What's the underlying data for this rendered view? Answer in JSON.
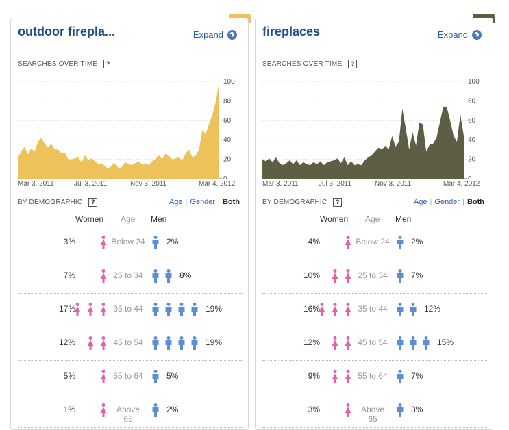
{
  "colors": {
    "outdoor": "#eec25a",
    "fireplaces": "#5e5e45",
    "women": "#e85ea9",
    "men": "#5b8ed6",
    "title": "#1f4e8c"
  },
  "panels": [
    {
      "title": "outdoor firepla...",
      "expand_label": "Expand",
      "searches_label": "SEARCHES OVER TIME",
      "help": "?",
      "x_ticks": [
        "Mar 3, 2011",
        "Jul 3, 2011",
        "Nov 3, 2011",
        "Mar 4, 2012"
      ],
      "y_ticks": [
        "100",
        "80",
        "60",
        "40",
        "20",
        "0"
      ],
      "demographic_label": "BY DEMOGRAPHIC",
      "filter": [
        "Age",
        "Gender",
        "Both"
      ],
      "heads": {
        "women": "Women",
        "age": "Age",
        "men": "Men"
      },
      "rows": [
        {
          "women_pct": "3%",
          "age": "Below 24",
          "men_pct": "2%",
          "w_icons": 1,
          "m_icons": 1
        },
        {
          "women_pct": "7%",
          "age": "25 to 34",
          "men_pct": "8%",
          "w_icons": 1,
          "m_icons": 2
        },
        {
          "women_pct": "17%",
          "age": "35 to 44",
          "men_pct": "19%",
          "w_icons": 3,
          "m_icons": 4
        },
        {
          "women_pct": "12%",
          "age": "45 to 54",
          "men_pct": "19%",
          "w_icons": 2,
          "m_icons": 4
        },
        {
          "women_pct": "5%",
          "age": "55 to 64",
          "men_pct": "5%",
          "w_icons": 1,
          "m_icons": 1
        },
        {
          "women_pct": "1%",
          "age": "Above 65",
          "men_pct": "2%",
          "w_icons": 1,
          "m_icons": 1
        }
      ]
    },
    {
      "title": "fireplaces",
      "expand_label": "Expand",
      "searches_label": "SEARCHES OVER TIME",
      "help": "?",
      "x_ticks": [
        "Mar 3, 2011",
        "Jul 3, 2011",
        "Nov 3, 2011",
        "Mar 4, 2012"
      ],
      "y_ticks": [
        "100",
        "80",
        "60",
        "40",
        "20",
        "0"
      ],
      "demographic_label": "BY DEMOGRAPHIC",
      "filter": [
        "Age",
        "Gender",
        "Both"
      ],
      "heads": {
        "women": "Women",
        "age": "Age",
        "men": "Men"
      },
      "rows": [
        {
          "women_pct": "4%",
          "age": "Below 24",
          "men_pct": "2%",
          "w_icons": 1,
          "m_icons": 1
        },
        {
          "women_pct": "10%",
          "age": "25 to 34",
          "men_pct": "7%",
          "w_icons": 2,
          "m_icons": 1
        },
        {
          "women_pct": "16%",
          "age": "35 to 44",
          "men_pct": "12%",
          "w_icons": 3,
          "m_icons": 2
        },
        {
          "women_pct": "12%",
          "age": "45 to 54",
          "men_pct": "15%",
          "w_icons": 2,
          "m_icons": 3
        },
        {
          "women_pct": "9%",
          "age": "55 to 64",
          "men_pct": "7%",
          "w_icons": 2,
          "m_icons": 1
        },
        {
          "women_pct": "3%",
          "age": "Above 65",
          "men_pct": "3%",
          "w_icons": 1,
          "m_icons": 1
        }
      ]
    }
  ],
  "chart_data": [
    {
      "type": "area",
      "title": "",
      "xlabel": "",
      "ylabel": "",
      "x_ticks": [
        "Mar 3, 2011",
        "Jul 3, 2011",
        "Nov 3, 2011",
        "Mar 4, 2012"
      ],
      "ylim": [
        0,
        100
      ],
      "y_ticks": [
        0,
        20,
        40,
        60,
        80,
        100
      ],
      "series": [
        {
          "values": [
            22,
            28,
            33,
            25,
            31,
            28,
            38,
            42,
            36,
            32,
            36,
            30,
            30,
            26,
            27,
            20,
            20,
            21,
            22,
            17,
            24,
            19,
            21,
            18,
            15,
            16,
            13,
            10,
            14,
            16,
            11,
            12,
            17,
            15,
            14,
            16,
            18,
            15,
            16,
            14,
            18,
            20,
            24,
            20,
            26,
            23,
            20,
            21,
            22,
            19,
            26,
            30,
            22,
            24,
            30,
            50,
            46,
            57,
            66,
            80,
            100
          ]
        }
      ]
    },
    {
      "type": "area",
      "title": "",
      "xlabel": "",
      "ylabel": "",
      "x_ticks": [
        "Mar 3, 2011",
        "Jul 3, 2011",
        "Nov 3, 2011",
        "Mar 4, 2012"
      ],
      "ylim": [
        0,
        100
      ],
      "y_ticks": [
        0,
        20,
        40,
        60,
        80,
        100
      ],
      "series": [
        {
          "values": [
            20,
            18,
            21,
            17,
            22,
            16,
            14,
            16,
            19,
            15,
            19,
            14,
            17,
            15,
            14,
            17,
            15,
            18,
            14,
            17,
            18,
            19,
            21,
            16,
            22,
            14,
            18,
            14,
            15,
            14,
            19,
            22,
            24,
            28,
            32,
            30,
            34,
            30,
            44,
            33,
            38,
            72,
            52,
            30,
            48,
            34,
            58,
            56,
            28,
            35,
            36,
            42,
            58,
            74,
            74,
            60,
            44,
            38,
            66,
            44
          ]
        }
      ]
    }
  ]
}
